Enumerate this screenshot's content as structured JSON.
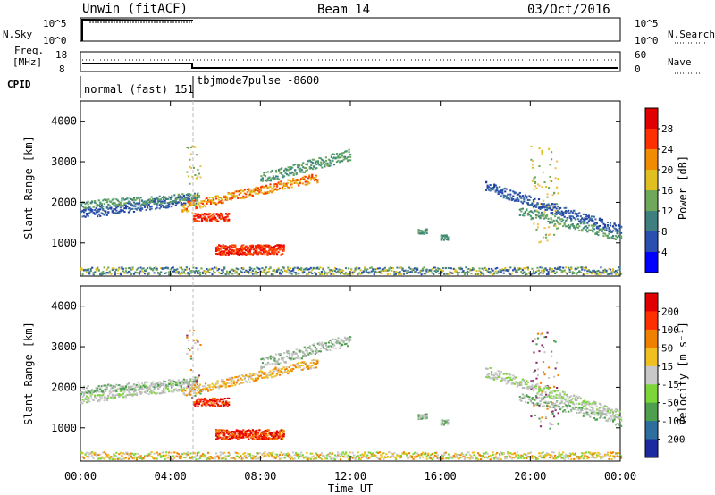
{
  "header": {
    "left": "Unwin (fitACF)",
    "center": "Beam 14",
    "right": "03/Oct/2016"
  },
  "nsky": {
    "label": "N.Sky",
    "ticks": [
      "10^5",
      "10^0"
    ],
    "right_ticks": [
      "10^5",
      "10^0"
    ],
    "right_label": "N.Search"
  },
  "freq": {
    "label1": "Freq.",
    "label2": "[MHz]",
    "ticks": [
      "18",
      "8"
    ],
    "right_ticks": [
      "60",
      "0"
    ],
    "right_label": "Nave"
  },
  "cpid": {
    "label": "CPID",
    "segments": [
      "normal (fast) 151",
      "tbjmode7pulse -8600"
    ]
  },
  "chart_data": [
    {
      "type": "heatmap",
      "ylabel": "Slant Range [km]",
      "xlabel": "Time UT",
      "x_ticks": [
        "00:00",
        "04:00",
        "08:00",
        "12:00",
        "16:00",
        "20:00",
        "00:00"
      ],
      "y_ticks": [
        "1000",
        "2000",
        "3000",
        "4000"
      ],
      "ylim": [
        180,
        4500
      ],
      "colorbar": {
        "label": "Power [dB]",
        "ticks": [
          "4",
          "8",
          "12",
          "16",
          "20",
          "24",
          "28"
        ]
      },
      "colors": [
        "#0000ff",
        "#2a4fb0",
        "#3f7f7f",
        "#6fa85a",
        "#e0c020",
        "#f08c00",
        "#ff3000",
        "#e00000"
      ]
    },
    {
      "type": "heatmap",
      "ylabel": "Slant Range [km]",
      "xlabel": "Time UT",
      "x_ticks": [
        "00:00",
        "04:00",
        "08:00",
        "12:00",
        "16:00",
        "20:00",
        "00:00"
      ],
      "y_ticks": [
        "1000",
        "2000",
        "3000",
        "4000"
      ],
      "ylim": [
        180,
        4500
      ],
      "colorbar": {
        "label": "Velocity [m s⁻¹]",
        "ticks": [
          "200",
          "100",
          "50",
          "15",
          "-15",
          "-50",
          "-100",
          "-200"
        ]
      },
      "colors": [
        "#1c2aa0",
        "#2e6e9e",
        "#4ea04e",
        "#7cd63a",
        "#c8c8c8",
        "#f0c020",
        "#f08000",
        "#ff3000",
        "#e00000"
      ]
    }
  ],
  "xaxis": {
    "label": "Time UT",
    "ticks": [
      "00:00",
      "04:00",
      "08:00",
      "12:00",
      "16:00",
      "20:00",
      "00:00"
    ]
  }
}
